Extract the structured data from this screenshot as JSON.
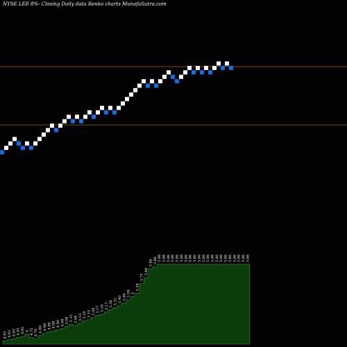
{
  "header": {
    "title": "NYSE LEE 8%-  Closing Daily data Renko  charts MunafaSutra.com"
  },
  "colors": {
    "background": "#000000",
    "up_brick": "#ffffff",
    "down_brick": "#1e6fe0",
    "guide_line": "#b5651d",
    "volume_fill": "#0b3d0b",
    "volume_outline": "#4c8a4c"
  },
  "chart_data": {
    "type": "renko",
    "title": "NYSE LEE 8%-  Closing Daily data Renko  charts MunafaSutra.com",
    "bricks": [
      {
        "level": 0,
        "dir": "down"
      },
      {
        "level": 1,
        "dir": "up"
      },
      {
        "level": 2,
        "dir": "up"
      },
      {
        "level": 3,
        "dir": "up"
      },
      {
        "level": 2,
        "dir": "down"
      },
      {
        "level": 1,
        "dir": "down"
      },
      {
        "level": 2,
        "dir": "up"
      },
      {
        "level": 1,
        "dir": "down"
      },
      {
        "level": 2,
        "dir": "up"
      },
      {
        "level": 3,
        "dir": "up"
      },
      {
        "level": 4,
        "dir": "up"
      },
      {
        "level": 5,
        "dir": "up"
      },
      {
        "level": 6,
        "dir": "up"
      },
      {
        "level": 5,
        "dir": "down"
      },
      {
        "level": 6,
        "dir": "up"
      },
      {
        "level": 7,
        "dir": "up"
      },
      {
        "level": 8,
        "dir": "up"
      },
      {
        "level": 7,
        "dir": "down"
      },
      {
        "level": 8,
        "dir": "up"
      },
      {
        "level": 7,
        "dir": "down"
      },
      {
        "level": 8,
        "dir": "up"
      },
      {
        "level": 9,
        "dir": "up"
      },
      {
        "level": 8,
        "dir": "down"
      },
      {
        "level": 9,
        "dir": "up"
      },
      {
        "level": 10,
        "dir": "up"
      },
      {
        "level": 9,
        "dir": "down"
      },
      {
        "level": 10,
        "dir": "up"
      },
      {
        "level": 9,
        "dir": "down"
      },
      {
        "level": 10,
        "dir": "up"
      },
      {
        "level": 11,
        "dir": "up"
      },
      {
        "level": 12,
        "dir": "up"
      },
      {
        "level": 13,
        "dir": "up"
      },
      {
        "level": 14,
        "dir": "up"
      },
      {
        "level": 15,
        "dir": "up"
      },
      {
        "level": 16,
        "dir": "up"
      },
      {
        "level": 15,
        "dir": "down"
      },
      {
        "level": 16,
        "dir": "up"
      },
      {
        "level": 15,
        "dir": "down"
      },
      {
        "level": 16,
        "dir": "up"
      },
      {
        "level": 17,
        "dir": "up"
      },
      {
        "level": 18,
        "dir": "up"
      },
      {
        "level": 17,
        "dir": "down"
      },
      {
        "level": 16,
        "dir": "down"
      },
      {
        "level": 17,
        "dir": "up"
      },
      {
        "level": 18,
        "dir": "up"
      },
      {
        "level": 19,
        "dir": "up"
      },
      {
        "level": 18,
        "dir": "down"
      },
      {
        "level": 19,
        "dir": "up"
      },
      {
        "level": 18,
        "dir": "down"
      },
      {
        "level": 19,
        "dir": "up"
      },
      {
        "level": 18,
        "dir": "down"
      },
      {
        "level": 19,
        "dir": "up"
      },
      {
        "level": 20,
        "dir": "up"
      },
      {
        "level": 19,
        "dir": "down"
      },
      {
        "level": 20,
        "dir": "up"
      },
      {
        "level": 19,
        "dir": "down"
      }
    ],
    "guide_lines": [
      "upper",
      "lower"
    ],
    "volume_labels": [
      "4.93",
      "4.93",
      "4.93",
      "4.93",
      "4.95",
      "0",
      "4.75",
      "4.76",
      "4.89",
      "4.98",
      "4.90",
      "4.98",
      "4.90",
      "4.98",
      "5.06",
      "5.15",
      "5.08",
      "5.15",
      "5.10",
      "5.10",
      "5.08",
      "5.17",
      "5.24",
      "5.17",
      "5.36",
      "5.32",
      "5.40",
      "5.49",
      "5.58",
      "5",
      "5.58",
      "5.71",
      "5.86",
      "5.86",
      "5.86",
      "5.86",
      "5.86",
      "5.86",
      "5.86",
      "5.86",
      "5.86",
      "5.86",
      "5.86",
      "5.86",
      "5.86",
      "5.86",
      "5.86",
      "5.86",
      "5.86",
      "5.86",
      "5.86",
      "5.86",
      "5.86",
      "5.86",
      "5.86",
      "5.86"
    ],
    "volume_values": [
      3,
      4,
      5,
      6,
      7,
      9,
      6,
      5,
      8,
      10,
      11,
      12,
      13,
      14,
      16,
      18,
      17,
      19,
      21,
      22,
      24,
      26,
      27,
      29,
      31,
      33,
      35,
      37,
      40,
      43,
      46,
      55,
      60,
      68,
      70,
      72,
      72,
      72,
      72,
      72,
      72,
      72,
      72,
      72,
      72,
      72,
      72,
      72,
      72,
      72,
      72,
      72,
      72,
      72,
      72,
      72
    ],
    "grid": false,
    "legend": "none"
  }
}
